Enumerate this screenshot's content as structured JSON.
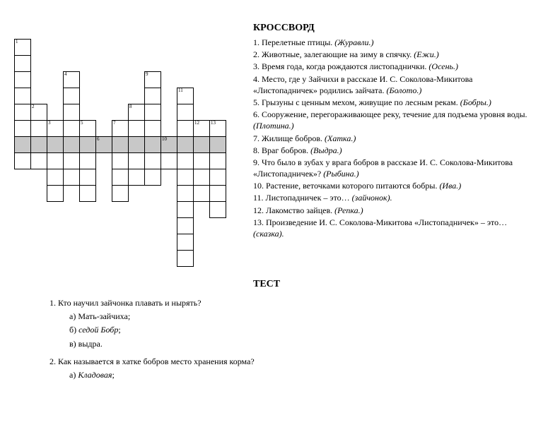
{
  "title_crossword": "КРОССВОРД",
  "title_test": "ТЕСТ",
  "clues": [
    {
      "n": "1.",
      "text": "Перелетные птицы.",
      "ans": "(Журавли.)"
    },
    {
      "n": "2.",
      "text": "Животные, залегающие на зиму в спячку.",
      "ans": "(Ежи.)"
    },
    {
      "n": "3.",
      "text": "Время года, когда рождаются листопаднички.",
      "ans": "(Осень.)"
    },
    {
      "n": "4.",
      "text": "Место, где у Зайчихи в рассказе И. С. Соколова-Микитова «Листопадничек» родились зайчата.",
      "ans": "(Болото.)"
    },
    {
      "n": "5.",
      "text": "Грызуны с ценным мехом, живущие по лесным рекам.",
      "ans": "(Бобры.)"
    },
    {
      "n": "6.",
      "text": "Сооружение, перегораживающее реку, течение для подъема уровня воды.",
      "ans": "(Плотина.)"
    },
    {
      "n": "7.",
      "text": "Жилище бобров.",
      "ans": "(Хатка.)"
    },
    {
      "n": "8.",
      "text": "Враг бобров.",
      "ans": "(Выдра.)"
    },
    {
      "n": "9.",
      "text": "Что было в зубах у врага бобров в рассказе И. С. Соколова-Микитова «Листопадничек»?",
      "ans": "(Рыбина.)"
    },
    {
      "n": "10.",
      "text": "Растение, веточками которого питаются бобры.",
      "ans": "(Ива.)"
    },
    {
      "n": "11.",
      "text": "Листопадничек – это…",
      "ans": "(зайчонок)."
    },
    {
      "n": "12.",
      "text": "Лакомство зайцев.",
      "ans": "(Репка.)"
    },
    {
      "n": "13.",
      "text": "Произведение И. С. Соколова-Микитова «Листопадничек» – это…",
      "ans": "(сказка)."
    }
  ],
  "test": {
    "q1": "1. Кто научил зайчонка плавать и нырять?",
    "q1a": "а) Мать-зайчиха;",
    "q1b_pre": "б) ",
    "q1b_em": "седой Бобр",
    "q1b_post": ";",
    "q1c": "в) выдра.",
    "q2": "2. Как называется в хатке бобров место хранения корма?",
    "q2a_pre": "а) ",
    "q2a_em": "Кладовая",
    "q2a_post": ";"
  },
  "grid": {
    "rows": 14,
    "cols": 15,
    "cells": [
      {
        "r": 0,
        "c": 0,
        "n": "1"
      },
      {
        "r": 1,
        "c": 0
      },
      {
        "r": 2,
        "c": 0
      },
      {
        "r": 2,
        "c": 3,
        "n": "4"
      },
      {
        "r": 2,
        "c": 8,
        "n": "9"
      },
      {
        "r": 3,
        "c": 0
      },
      {
        "r": 3,
        "c": 3
      },
      {
        "r": 3,
        "c": 8
      },
      {
        "r": 3,
        "c": 10,
        "n": "11"
      },
      {
        "r": 4,
        "c": 0
      },
      {
        "r": 4,
        "c": 1,
        "n": "2"
      },
      {
        "r": 4,
        "c": 3
      },
      {
        "r": 4,
        "c": 7,
        "n": "8"
      },
      {
        "r": 4,
        "c": 8
      },
      {
        "r": 4,
        "c": 10
      },
      {
        "r": 5,
        "c": 0
      },
      {
        "r": 5,
        "c": 2,
        "n": "3"
      },
      {
        "r": 5,
        "c": 3
      },
      {
        "r": 5,
        "c": 4,
        "n": "5"
      },
      {
        "r": 5,
        "c": 6,
        "n": "7"
      },
      {
        "r": 5,
        "c": 7
      },
      {
        "r": 5,
        "c": 8
      },
      {
        "r": 5,
        "c": 10
      },
      {
        "r": 5,
        "c": 11,
        "n": "12"
      },
      {
        "r": 5,
        "c": 12,
        "n": "13"
      },
      {
        "r": 6,
        "c": 0,
        "s": true
      },
      {
        "r": 6,
        "c": 1,
        "s": true
      },
      {
        "r": 6,
        "c": 2,
        "s": true
      },
      {
        "r": 6,
        "c": 3,
        "s": true
      },
      {
        "r": 6,
        "c": 4,
        "s": true
      },
      {
        "r": 6,
        "c": 5,
        "s": true,
        "n": "6"
      },
      {
        "r": 6,
        "c": 6,
        "s": true
      },
      {
        "r": 6,
        "c": 7,
        "s": true
      },
      {
        "r": 6,
        "c": 8,
        "s": true
      },
      {
        "r": 6,
        "c": 9,
        "s": true,
        "n": "10"
      },
      {
        "r": 6,
        "c": 10,
        "s": true
      },
      {
        "r": 6,
        "c": 11,
        "s": true
      },
      {
        "r": 6,
        "c": 12,
        "s": true
      },
      {
        "r": 7,
        "c": 0
      },
      {
        "r": 7,
        "c": 1
      },
      {
        "r": 7,
        "c": 2
      },
      {
        "r": 7,
        "c": 3
      },
      {
        "r": 7,
        "c": 4
      },
      {
        "r": 7,
        "c": 6
      },
      {
        "r": 7,
        "c": 7
      },
      {
        "r": 7,
        "c": 8
      },
      {
        "r": 7,
        "c": 9
      },
      {
        "r": 7,
        "c": 10
      },
      {
        "r": 7,
        "c": 11
      },
      {
        "r": 7,
        "c": 12
      },
      {
        "r": 8,
        "c": 2
      },
      {
        "r": 8,
        "c": 3
      },
      {
        "r": 8,
        "c": 4
      },
      {
        "r": 8,
        "c": 6
      },
      {
        "r": 8,
        "c": 7
      },
      {
        "r": 8,
        "c": 8
      },
      {
        "r": 8,
        "c": 10
      },
      {
        "r": 8,
        "c": 11
      },
      {
        "r": 8,
        "c": 12
      },
      {
        "r": 9,
        "c": 2
      },
      {
        "r": 9,
        "c": 4
      },
      {
        "r": 9,
        "c": 6
      },
      {
        "r": 9,
        "c": 10
      },
      {
        "r": 9,
        "c": 11
      },
      {
        "r": 9,
        "c": 12
      },
      {
        "r": 10,
        "c": 10
      },
      {
        "r": 10,
        "c": 12
      },
      {
        "r": 11,
        "c": 10
      },
      {
        "r": 12,
        "c": 10
      },
      {
        "r": 13,
        "c": 10
      }
    ]
  }
}
